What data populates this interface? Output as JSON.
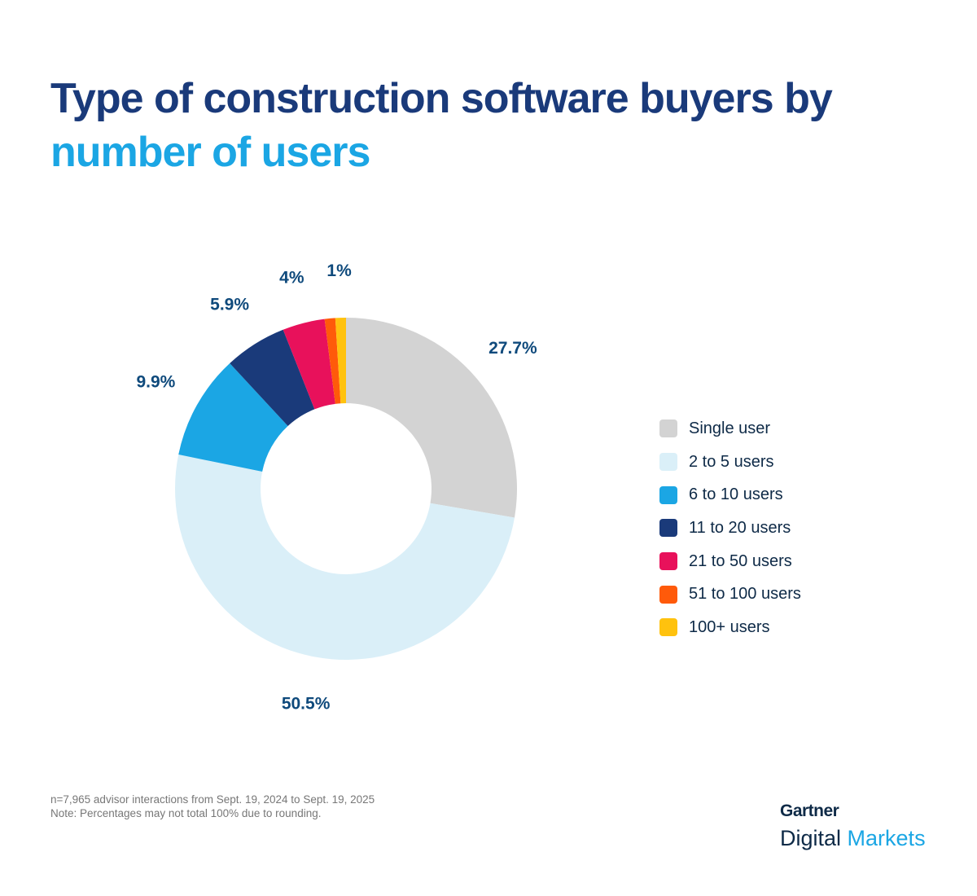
{
  "title": {
    "line1": "Type of construction software buyers by",
    "line2": "number of users"
  },
  "chart_data": {
    "type": "pie",
    "variant": "donut",
    "categories": [
      "Single user",
      "2 to 5 users",
      "6 to 10 users",
      "11 to 20 users",
      "21 to 50 users",
      "51 to 100 users",
      "100+ users"
    ],
    "values": [
      27.7,
      50.5,
      9.9,
      5.9,
      4,
      1,
      1
    ],
    "data_labels": [
      "27.7%",
      "50.5%",
      "9.9%",
      "5.9%",
      "4%",
      "",
      "1%"
    ],
    "colors": [
      "#d3d3d3",
      "#daeff8",
      "#1ba6e4",
      "#1a3a7a",
      "#e8115b",
      "#ff5a0a",
      "#ffc20e"
    ],
    "legend_position": "right"
  },
  "footnote": {
    "line1": "n=7,965 advisor interactions from Sept. 19, 2024 to Sept. 19, 2025",
    "line2": "Note: Percentages may not total 100% due to rounding."
  },
  "logo": {
    "brand": "Gartner",
    "product_a": "Digital",
    "product_b": "Markets"
  }
}
